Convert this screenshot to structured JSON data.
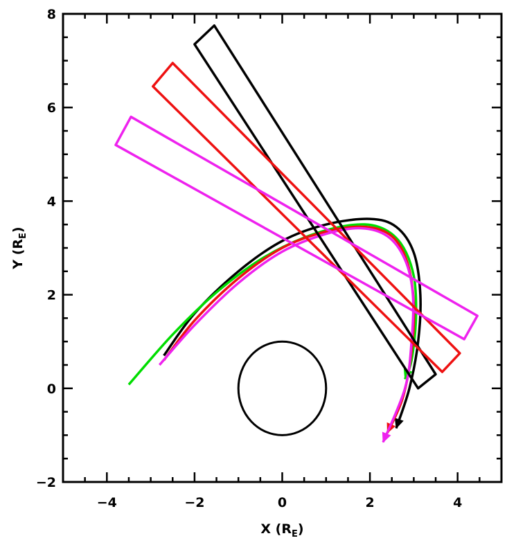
{
  "chart_data": {
    "type": "line",
    "xlabel": {
      "main": "X (R",
      "sub": "E",
      "close": ")"
    },
    "ylabel": {
      "main": "Y (R",
      "sub": "E",
      "close": ")"
    },
    "xlim": [
      -5,
      5
    ],
    "ylim": [
      -2,
      8
    ],
    "x_major_ticks": [
      -4,
      -2,
      0,
      2,
      4
    ],
    "y_major_ticks": [
      -2,
      0,
      2,
      4,
      6,
      8
    ],
    "x_tick_labels": [
      "−4",
      "−2",
      "0",
      "2",
      "4"
    ],
    "y_tick_labels": [
      "−2",
      "0",
      "2",
      "4",
      "6",
      "8"
    ],
    "minor_tick_step": 0.5,
    "grid": false,
    "earth": {
      "center": [
        0,
        0
      ],
      "radius": 1,
      "color": "#000000"
    },
    "series": [
      {
        "color": "#000000",
        "kind": "trajectory",
        "points": [
          [
            -2.7,
            0.7
          ],
          [
            -2.0,
            1.6
          ],
          [
            -1.0,
            2.5
          ],
          [
            0.0,
            3.15
          ],
          [
            1.0,
            3.5
          ],
          [
            2.0,
            3.62
          ],
          [
            2.6,
            3.45
          ],
          [
            3.0,
            2.9
          ],
          [
            3.15,
            2.0
          ],
          [
            3.1,
            1.0
          ],
          [
            2.9,
            0.0
          ],
          [
            2.6,
            -0.85
          ]
        ]
      },
      {
        "color": "#00dd00",
        "kind": "trajectory",
        "points": [
          [
            -3.5,
            0.08
          ],
          [
            -2.5,
            1.15
          ],
          [
            -1.5,
            2.05
          ],
          [
            -0.5,
            2.75
          ],
          [
            0.5,
            3.22
          ],
          [
            1.5,
            3.48
          ],
          [
            2.2,
            3.45
          ],
          [
            2.7,
            3.1
          ],
          [
            3.0,
            2.4
          ],
          [
            3.05,
            1.5
          ],
          [
            2.95,
            0.6
          ],
          [
            2.8,
            0.2
          ]
        ]
      },
      {
        "color": "#ee1111",
        "kind": "trajectory",
        "points": [
          [
            -2.7,
            0.6
          ],
          [
            -2.0,
            1.45
          ],
          [
            -1.0,
            2.35
          ],
          [
            0.0,
            3.0
          ],
          [
            1.0,
            3.35
          ],
          [
            1.9,
            3.45
          ],
          [
            2.5,
            3.25
          ],
          [
            2.85,
            2.7
          ],
          [
            3.0,
            1.8
          ],
          [
            2.95,
            0.8
          ],
          [
            2.75,
            -0.2
          ],
          [
            2.4,
            -0.95
          ]
        ]
      },
      {
        "color": "#ee22ee",
        "kind": "trajectory",
        "points": [
          [
            -2.8,
            0.5
          ],
          [
            -2.0,
            1.35
          ],
          [
            -1.0,
            2.25
          ],
          [
            0.0,
            2.92
          ],
          [
            1.0,
            3.3
          ],
          [
            1.8,
            3.42
          ],
          [
            2.4,
            3.25
          ],
          [
            2.8,
            2.75
          ],
          [
            2.98,
            2.0
          ],
          [
            2.95,
            1.0
          ],
          [
            2.8,
            0.0
          ],
          [
            2.3,
            -1.15
          ]
        ]
      },
      {
        "color": "#000000",
        "kind": "beam",
        "points": [
          [
            -2.0,
            7.35
          ],
          [
            -1.55,
            7.75
          ],
          [
            3.5,
            0.3
          ],
          [
            3.1,
            0.0
          ],
          [
            -2.0,
            7.35
          ]
        ]
      },
      {
        "color": "#ee1111",
        "kind": "beam",
        "points": [
          [
            -2.95,
            6.45
          ],
          [
            -2.5,
            6.95
          ],
          [
            4.05,
            0.75
          ],
          [
            3.65,
            0.35
          ],
          [
            -2.95,
            6.45
          ]
        ]
      },
      {
        "color": "#ee22ee",
        "kind": "beam",
        "points": [
          [
            -3.8,
            5.2
          ],
          [
            -3.45,
            5.8
          ],
          [
            4.45,
            1.55
          ],
          [
            4.15,
            1.05
          ],
          [
            -3.8,
            5.2
          ]
        ]
      }
    ]
  }
}
